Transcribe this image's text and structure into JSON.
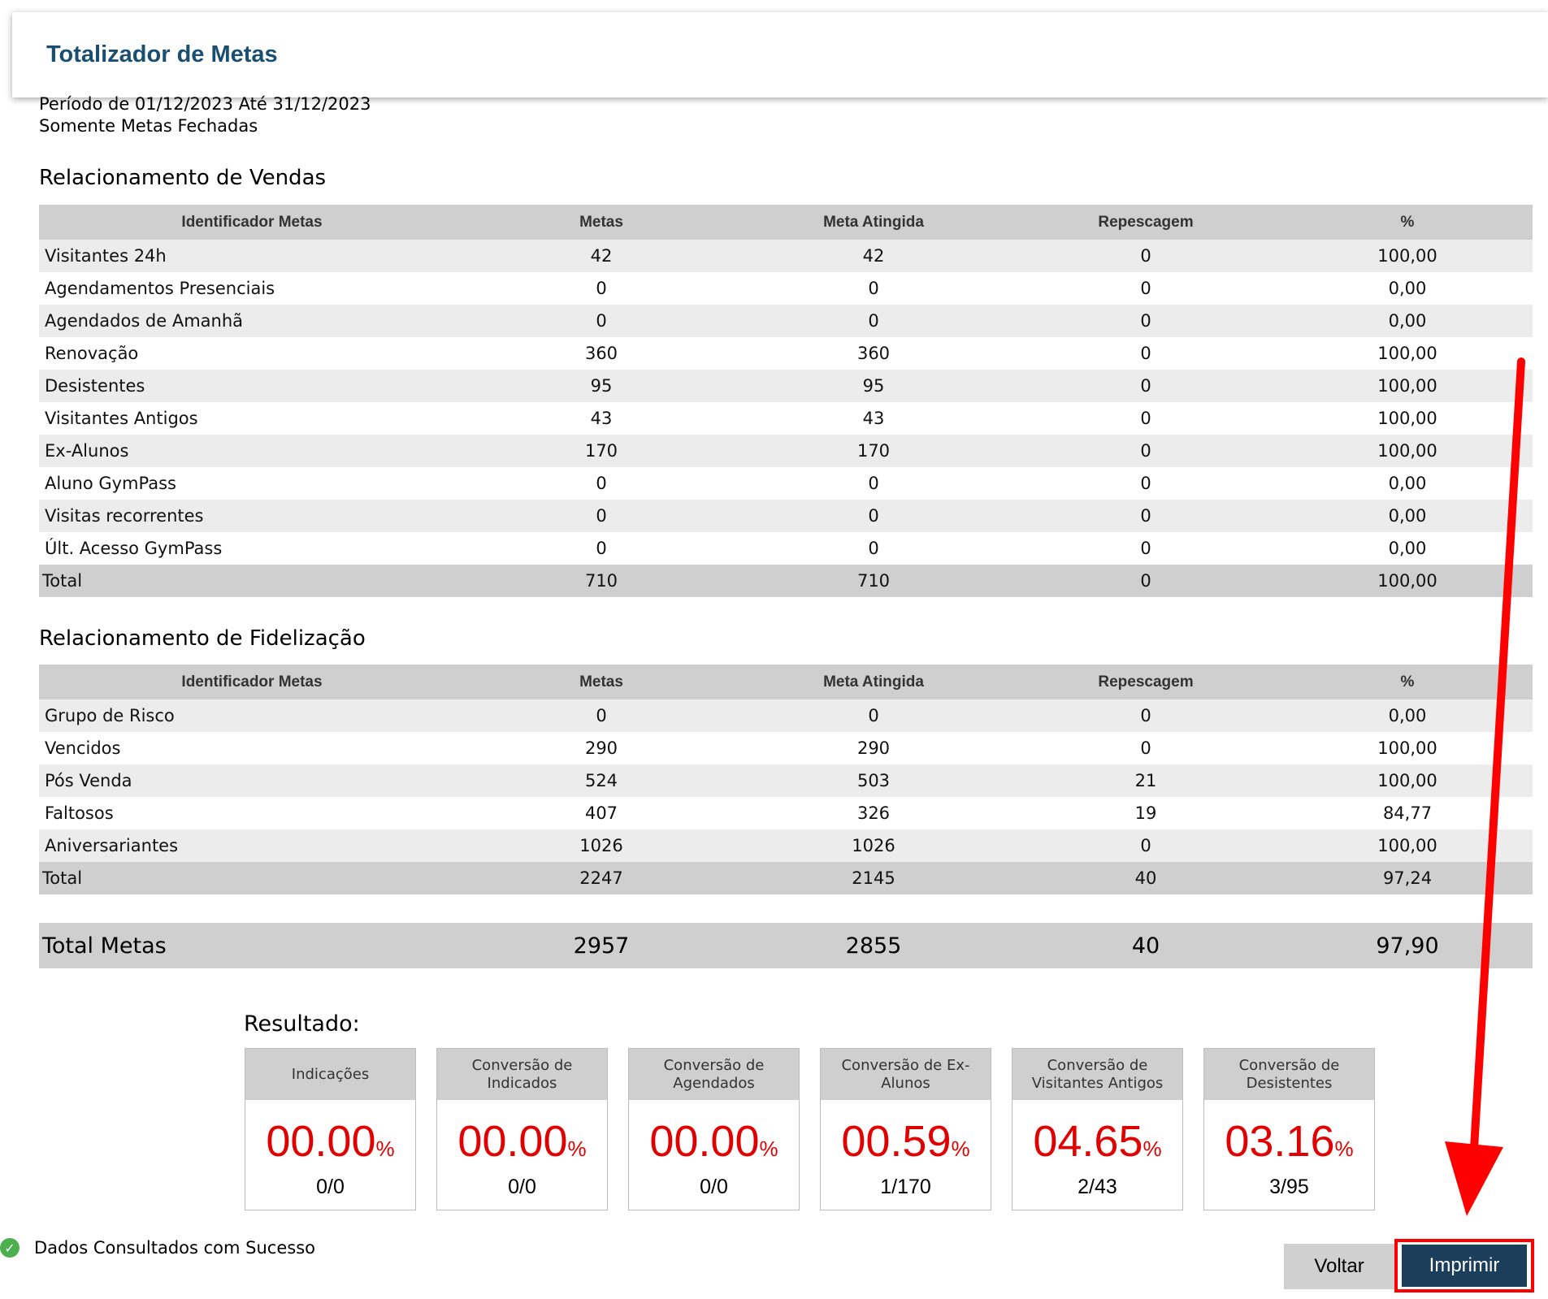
{
  "header": {
    "title": "Totalizador de Metas"
  },
  "filters": {
    "period": "Período de 01/12/2023 Até 31/12/2023",
    "mode": "Somente Metas Fechadas"
  },
  "columns": [
    "Identificador Metas",
    "Metas",
    "Meta Atingida",
    "Repescagem",
    "%"
  ],
  "vendas": {
    "title": "Relacionamento de Vendas",
    "rows": [
      {
        "name": "Visitantes 24h",
        "metas": "42",
        "atingida": "42",
        "repescagem": "0",
        "pct": "100,00",
        "status": "pos"
      },
      {
        "name": "Agendamentos Presenciais",
        "metas": "0",
        "atingida": "0",
        "repescagem": "0",
        "pct": "0,00",
        "status": "neg"
      },
      {
        "name": "Agendados de Amanhã",
        "metas": "0",
        "atingida": "0",
        "repescagem": "0",
        "pct": "0,00",
        "status": "neg"
      },
      {
        "name": "Renovação",
        "metas": "360",
        "atingida": "360",
        "repescagem": "0",
        "pct": "100,00",
        "status": "pos"
      },
      {
        "name": "Desistentes",
        "metas": "95",
        "atingida": "95",
        "repescagem": "0",
        "pct": "100,00",
        "status": "pos"
      },
      {
        "name": "Visitantes Antigos",
        "metas": "43",
        "atingida": "43",
        "repescagem": "0",
        "pct": "100,00",
        "status": "pos"
      },
      {
        "name": "Ex-Alunos",
        "metas": "170",
        "atingida": "170",
        "repescagem": "0",
        "pct": "100,00",
        "status": "pos"
      },
      {
        "name": "Aluno GymPass",
        "metas": "0",
        "atingida": "0",
        "repescagem": "0",
        "pct": "0,00",
        "status": "neg"
      },
      {
        "name": "Visitas recorrentes",
        "metas": "0",
        "atingida": "0",
        "repescagem": "0",
        "pct": "0,00",
        "status": "neg"
      },
      {
        "name": "Últ. Acesso GymPass",
        "metas": "0",
        "atingida": "0",
        "repescagem": "0",
        "pct": "0,00",
        "status": "neg"
      }
    ],
    "total": {
      "name": "Total",
      "metas": "710",
      "atingida": "710",
      "repescagem": "0",
      "pct": "100,00",
      "status": "pos"
    }
  },
  "fidelizacao": {
    "title": "Relacionamento de Fidelização",
    "rows": [
      {
        "name": "Grupo de Risco",
        "metas": "0",
        "atingida": "0",
        "repescagem": "0",
        "pct": "0,00",
        "status": "neg"
      },
      {
        "name": "Vencidos",
        "metas": "290",
        "atingida": "290",
        "repescagem": "0",
        "pct": "100,00",
        "status": "pos"
      },
      {
        "name": "Pós Venda",
        "metas": "524",
        "atingida": "503",
        "repescagem": "21",
        "pct": "100,00",
        "status": "pos"
      },
      {
        "name": "Faltosos",
        "metas": "407",
        "atingida": "326",
        "repescagem": "19",
        "pct": "84,77",
        "status": "pos"
      },
      {
        "name": "Aniversariantes",
        "metas": "1026",
        "atingida": "1026",
        "repescagem": "0",
        "pct": "100,00",
        "status": "pos"
      }
    ],
    "total": {
      "name": "Total",
      "metas": "2247",
      "atingida": "2145",
      "repescagem": "40",
      "pct": "97,24",
      "status": "pos"
    }
  },
  "total_metas": {
    "label": "Total Metas",
    "metas": "2957",
    "atingida": "2855",
    "repescagem": "40",
    "pct": "97,90"
  },
  "resultado": {
    "title": "Resultado:",
    "cards": [
      {
        "label": "Indicações",
        "value": "00.00",
        "pct": "%",
        "fraction": "0/0"
      },
      {
        "label": "Conversão de Indicados",
        "value": "00.00",
        "pct": "%",
        "fraction": "0/0"
      },
      {
        "label": "Conversão de Agendados",
        "value": "00.00",
        "pct": "%",
        "fraction": "0/0"
      },
      {
        "label": "Conversão de Ex-Alunos",
        "value": "00.59",
        "pct": "%",
        "fraction": "1/170"
      },
      {
        "label": "Conversão de Visitantes Antigos",
        "value": "04.65",
        "pct": "%",
        "fraction": "2/43"
      },
      {
        "label": "Conversão de Desistentes",
        "value": "03.16",
        "pct": "%",
        "fraction": "3/95"
      }
    ]
  },
  "status": {
    "text": "Dados Consultados com Sucesso",
    "icon": "check-circle-icon"
  },
  "buttons": {
    "voltar": "Voltar",
    "imprimir": "Imprimir"
  },
  "colors": {
    "positive": "#1e6b2d",
    "negative": "#e00000",
    "primary": "#1b3e5a",
    "highlight": "#ff0000"
  }
}
